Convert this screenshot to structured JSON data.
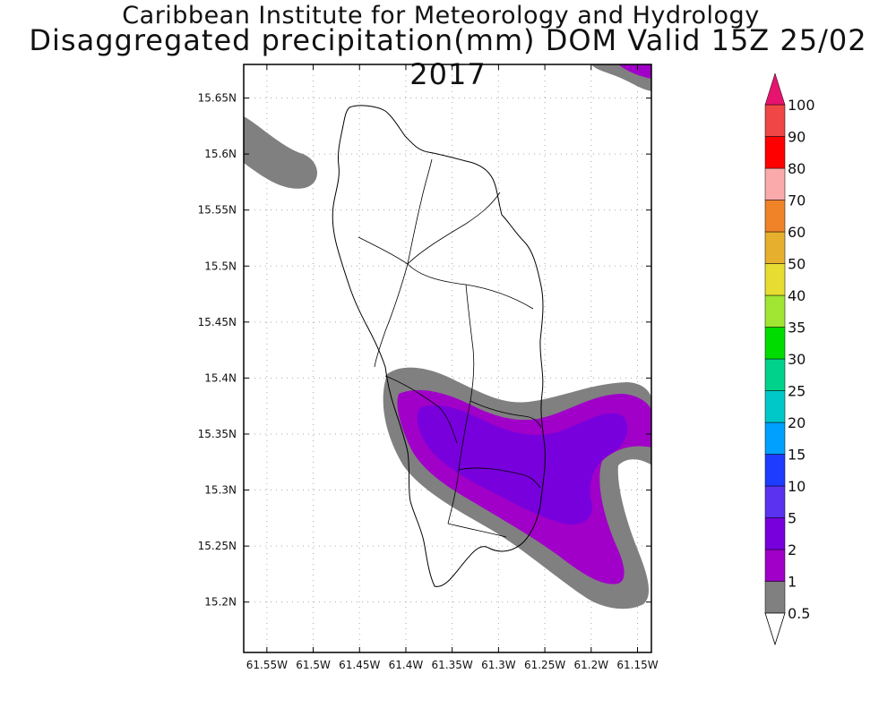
{
  "title": {
    "line1": "Caribbean Institute for Meteorology and Hydrology",
    "line2": "Disaggregated precipitation(mm) DOM Valid 15Z 25/02 2017"
  },
  "map": {
    "lon_ticks": [
      "61.55W",
      "61.5W",
      "61.45W",
      "61.4W",
      "61.35W",
      "61.3W",
      "61.25W",
      "61.2W",
      "61.15W"
    ],
    "lat_ticks": [
      "15.65N",
      "15.6N",
      "15.55N",
      "15.5N",
      "15.45N",
      "15.4N",
      "15.35N",
      "15.3N",
      "15.25N",
      "15.2N"
    ],
    "lon_range": [
      -61.575,
      -61.135
    ],
    "lat_range": [
      15.155,
      15.68
    ],
    "grid": true,
    "outline_color": "#000000",
    "colors": {
      "gray_0_5_to_1": "#808080",
      "purple_1_to_2": "#a000c8",
      "violet_2_to_5": "#7800dc"
    }
  },
  "colorbar": {
    "levels": [
      "0.5",
      "1",
      "2",
      "5",
      "10",
      "15",
      "20",
      "25",
      "30",
      "35",
      "40",
      "50",
      "60",
      "70",
      "80",
      "90",
      "100"
    ],
    "colors": [
      "#808080",
      "#a000c8",
      "#7800dc",
      "#5a32f0",
      "#1e3cff",
      "#00a0ff",
      "#00c8c8",
      "#00d28c",
      "#00dc00",
      "#a0e632",
      "#e6dc32",
      "#e6af2d",
      "#f08228",
      "#faaaaa",
      "#ff0000",
      "#f04646"
    ],
    "lower_triangle_color": "#ffffff",
    "upper_triangle_color": "#e6146e"
  }
}
